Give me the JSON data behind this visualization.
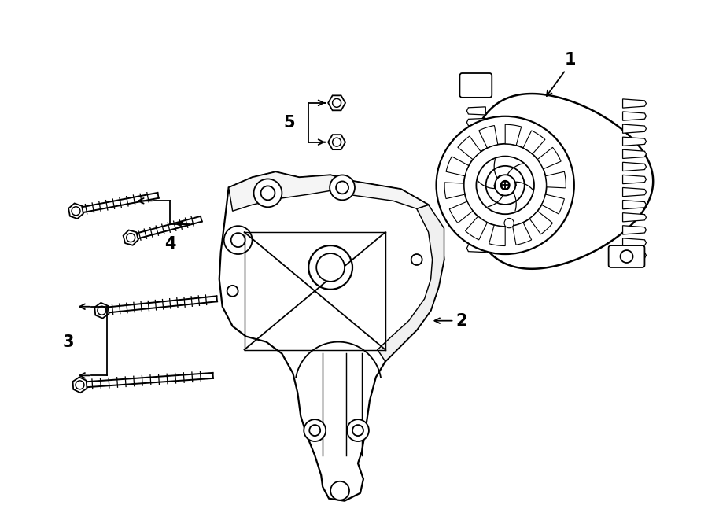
{
  "background_color": "#ffffff",
  "line_color": "#000000",
  "lw": 1.3,
  "fig_width": 9.0,
  "fig_height": 6.61,
  "dpi": 100
}
